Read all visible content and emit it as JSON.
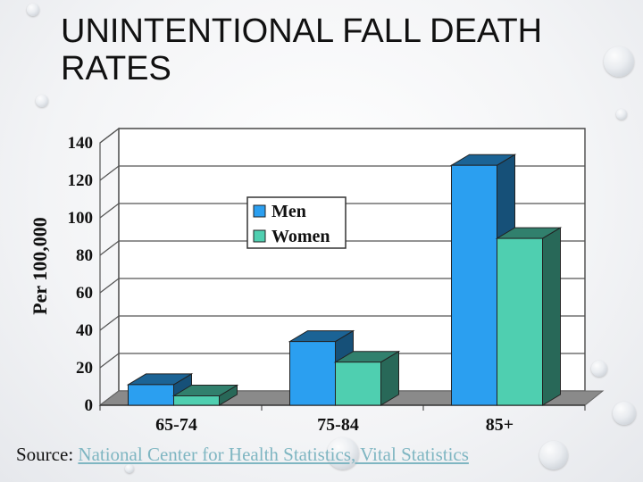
{
  "title": "UNINTENTIONAL FALL DEATH RATES",
  "source": {
    "prefix": "Source:",
    "link_text": "National Center for Health Statistics, Vital Statistics"
  },
  "chart_data": {
    "type": "bar",
    "ylabel": "Per 100,000",
    "ylim": [
      0,
      140
    ],
    "yticks": [
      "0",
      "20",
      "40",
      "60",
      "80",
      "100",
      "120",
      "140"
    ],
    "categories": [
      "65-74",
      "75-84",
      "85+"
    ],
    "series": [
      {
        "name": "Men",
        "values": [
          11,
          34,
          128
        ],
        "color": "#2b9ff0"
      },
      {
        "name": "Women",
        "values": [
          5,
          23,
          89
        ],
        "color": "#4fcfb0"
      }
    ],
    "legend_position": "center",
    "grid": true
  }
}
